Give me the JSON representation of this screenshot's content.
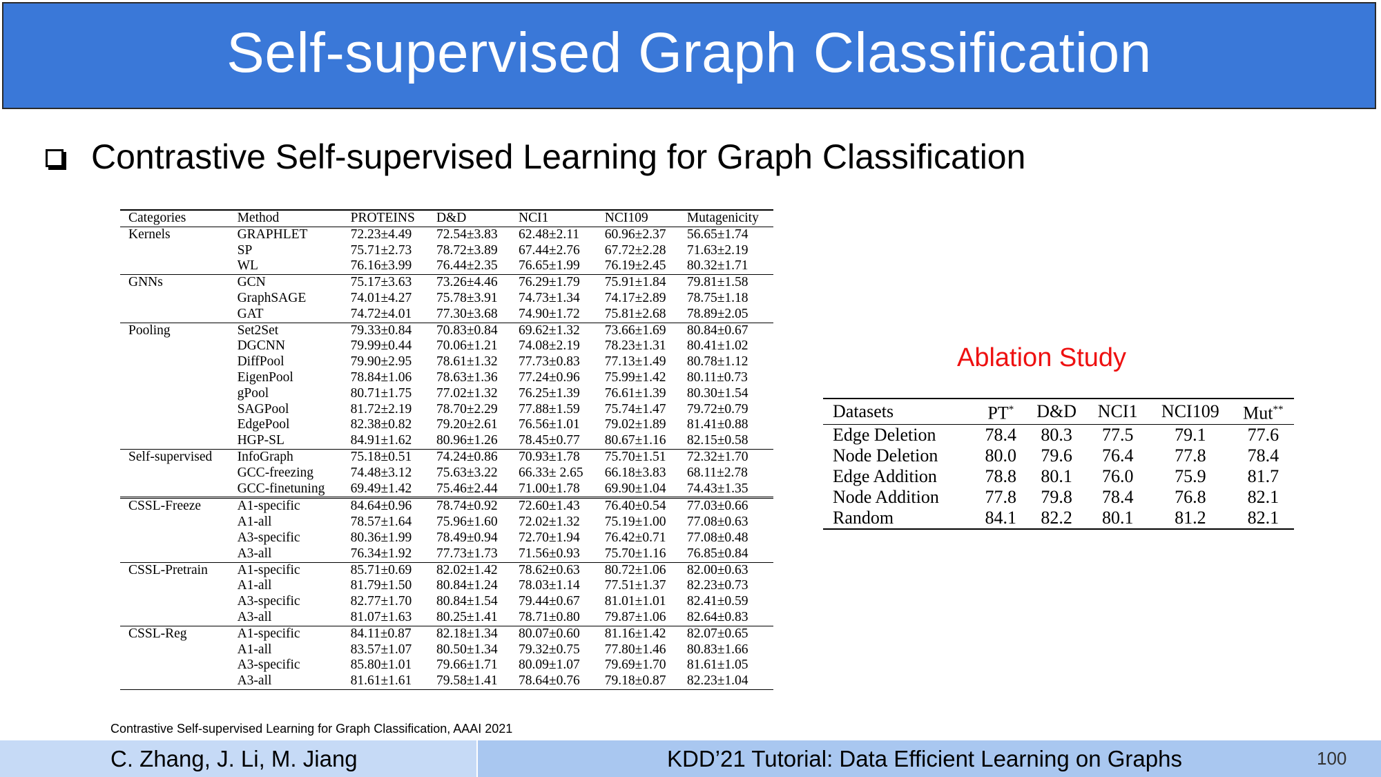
{
  "slide": {
    "title": "Self-supervised Graph Classification",
    "bullet": "Contrastive Self-supervised Learning for Graph Classification",
    "ablation_title": "Ablation Study",
    "citation": "Contrastive Self-supervised Learning for Graph Classification, AAAI 2021",
    "footer_authors": "C. Zhang, J. Li, M. Jiang",
    "footer_title": "KDD’21 Tutorial: Data Efficient Learning on Graphs",
    "page_number": "100"
  },
  "main_table": {
    "headers": [
      "Categories",
      "Method",
      "PROTEINS",
      "D&D",
      "NCI1",
      "NCI109",
      "Mutagenicity"
    ],
    "groups": [
      {
        "category": "Kernels",
        "rows": [
          {
            "method": "GRAPHLET",
            "values": [
              "72.23±4.49",
              "72.54±3.83",
              "62.48±2.11",
              "60.96±2.37",
              "56.65±1.74"
            ]
          },
          {
            "method": "SP",
            "values": [
              "75.71±2.73",
              "78.72±3.89",
              "67.44±2.76",
              "67.72±2.28",
              "71.63±2.19"
            ]
          },
          {
            "method": "WL",
            "values": [
              "76.16±3.99",
              "76.44±2.35",
              "76.65±1.99",
              "76.19±2.45",
              "80.32±1.71"
            ]
          }
        ]
      },
      {
        "category": "GNNs",
        "rows": [
          {
            "method": "GCN",
            "values": [
              "75.17±3.63",
              "73.26±4.46",
              "76.29±1.79",
              "75.91±1.84",
              "79.81±1.58"
            ]
          },
          {
            "method": "GraphSAGE",
            "values": [
              "74.01±4.27",
              "75.78±3.91",
              "74.73±1.34",
              "74.17±2.89",
              "78.75±1.18"
            ]
          },
          {
            "method": "GAT",
            "values": [
              "74.72±4.01",
              "77.30±3.68",
              "74.90±1.72",
              "75.81±2.68",
              "78.89±2.05"
            ]
          }
        ]
      },
      {
        "category": "Pooling",
        "rows": [
          {
            "method": "Set2Set",
            "values": [
              "79.33±0.84",
              "70.83±0.84",
              "69.62±1.32",
              "73.66±1.69",
              "80.84±0.67"
            ]
          },
          {
            "method": "DGCNN",
            "values": [
              "79.99±0.44",
              "70.06±1.21",
              "74.08±2.19",
              "78.23±1.31",
              "80.41±1.02"
            ]
          },
          {
            "method": "DiffPool",
            "values": [
              "79.90±2.95",
              "78.61±1.32",
              "77.73±0.83",
              "77.13±1.49",
              "80.78±1.12"
            ]
          },
          {
            "method": "EigenPool",
            "values": [
              "78.84±1.06",
              "78.63±1.36",
              "77.24±0.96",
              "75.99±1.42",
              "80.11±0.73"
            ]
          },
          {
            "method": "gPool",
            "values": [
              "80.71±1.75",
              "77.02±1.32",
              "76.25±1.39",
              "76.61±1.39",
              "80.30±1.54"
            ]
          },
          {
            "method": "SAGPool",
            "values": [
              "81.72±2.19",
              "78.70±2.29",
              "77.88±1.59",
              "75.74±1.47",
              "79.72±0.79"
            ]
          },
          {
            "method": "EdgePool",
            "values": [
              "82.38±0.82",
              "79.20±2.61",
              "76.56±1.01",
              "79.02±1.89",
              "81.41±0.88"
            ]
          },
          {
            "method": "HGP-SL",
            "values": [
              "84.91±1.62",
              "80.96±1.26",
              "78.45±0.77",
              "80.67±1.16",
              "82.15±0.58"
            ]
          }
        ]
      },
      {
        "category": "Self-supervised",
        "rows": [
          {
            "method": "InfoGraph",
            "values": [
              "75.18±0.51",
              "74.24±0.86",
              "70.93±1.78",
              "75.70±1.51",
              "72.32±1.70"
            ]
          },
          {
            "method": "GCC-freezing",
            "values": [
              "74.48±3.12",
              "75.63±3.22",
              "66.33± 2.65",
              "66.18±3.83",
              "68.11±2.78"
            ]
          },
          {
            "method": "GCC-finetuning",
            "values": [
              "69.49±1.42",
              "75.46±2.44",
              "71.00±1.78",
              "69.90±1.04",
              "74.43±1.35"
            ]
          }
        ]
      },
      {
        "category": "CSSL-Freeze",
        "double": true,
        "rows": [
          {
            "method": "A1-specific",
            "values": [
              "84.64±0.96",
              "78.74±0.92",
              "72.60±1.43",
              "76.40±0.54",
              "77.03±0.66"
            ]
          },
          {
            "method": "A1-all",
            "values": [
              "78.57±1.64",
              "75.96±1.60",
              "72.02±1.32",
              "75.19±1.00",
              "77.08±0.63"
            ]
          },
          {
            "method": "A3-specific",
            "values": [
              "80.36±1.99",
              "78.49±0.94",
              "72.70±1.94",
              "76.42±0.71",
              "77.08±0.48"
            ]
          },
          {
            "method": "A3-all",
            "values": [
              "76.34±1.92",
              "77.73±1.73",
              "71.56±0.93",
              "75.70±1.16",
              "76.85±0.84"
            ]
          }
        ]
      },
      {
        "category": "CSSL-Pretrain",
        "rows": [
          {
            "method": "A1-specific",
            "values": [
              "85.71±0.69",
              "82.02±1.42",
              "78.62±0.63",
              "80.72±1.06",
              "82.00±0.63"
            ]
          },
          {
            "method": "A1-all",
            "values": [
              "81.79±1.50",
              "80.84±1.24",
              "78.03±1.14",
              "77.51±1.37",
              "82.23±0.73"
            ]
          },
          {
            "method": "A3-specific",
            "values": [
              "82.77±1.70",
              "80.84±1.54",
              "79.44±0.67",
              "81.01±1.01",
              "82.41±0.59"
            ]
          },
          {
            "method": "A3-all",
            "values": [
              "81.07±1.63",
              "80.25±1.41",
              "78.71±0.80",
              "79.87±1.06",
              "82.64±0.83"
            ],
            "bold": [
              4
            ]
          }
        ]
      },
      {
        "category": "CSSL-Reg",
        "rows": [
          {
            "method": "A1-specific",
            "values": [
              "84.11±0.87",
              "82.18±1.34",
              "80.07±0.60",
              "81.16±1.42",
              "82.07±0.65"
            ],
            "bold": [
              1,
              3
            ]
          },
          {
            "method": "A1-all",
            "values": [
              "83.57±1.07",
              "80.50±1.34",
              "79.32±0.75",
              "77.80±1.46",
              "80.83±1.66"
            ]
          },
          {
            "method": "A3-specific",
            "values": [
              "85.80±1.01",
              "79.66±1.71",
              "80.09±1.07",
              "79.69±1.70",
              "81.61±1.05"
            ],
            "bold": [
              0,
              2
            ]
          },
          {
            "method": "A3-all",
            "values": [
              "81.61±1.61",
              "79.58±1.41",
              "78.64±0.76",
              "79.18±0.87",
              "82.23±1.04"
            ]
          }
        ]
      }
    ]
  },
  "ablation_table": {
    "headers": [
      {
        "text": "Datasets",
        "sup": ""
      },
      {
        "text": "PT",
        "sup": "*"
      },
      {
        "text": "D&D",
        "sup": ""
      },
      {
        "text": "NCI1",
        "sup": ""
      },
      {
        "text": "NCI109",
        "sup": ""
      },
      {
        "text": "Mut",
        "sup": "**"
      }
    ],
    "rows": [
      {
        "label": "Edge Deletion",
        "values": [
          "78.4",
          "80.3",
          "77.5",
          "79.1",
          "77.6"
        ],
        "bold": []
      },
      {
        "label": "Node Deletion",
        "values": [
          "80.0",
          "79.6",
          "76.4",
          "77.8",
          "78.4"
        ],
        "bold": []
      },
      {
        "label": "Edge Addition",
        "values": [
          "78.8",
          "80.1",
          "76.0",
          "75.9",
          "81.7"
        ],
        "bold": []
      },
      {
        "label": "Node Addition",
        "values": [
          "77.8",
          "79.8",
          "78.4",
          "76.8",
          "82.1"
        ],
        "bold": [
          4
        ]
      },
      {
        "label": "Random",
        "values": [
          "84.1",
          "82.2",
          "80.1",
          "81.2",
          "82.1"
        ],
        "bold": [
          0,
          1,
          2,
          3,
          4
        ]
      }
    ]
  }
}
